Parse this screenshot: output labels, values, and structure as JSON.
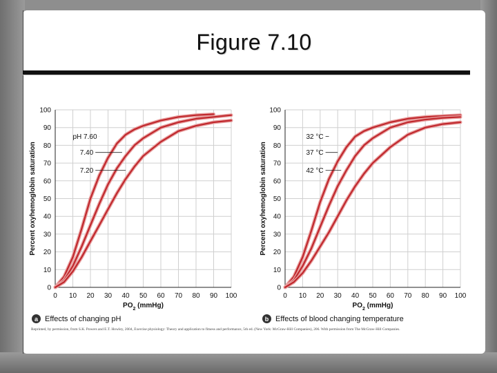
{
  "slide": {
    "title": "Figure 7.10",
    "credit": "Reprinted, by permission, from S.K. Powers and E.T. Howley, 2004, Exercise physiology: Theory and application to fitness and performance, 5th ed. (New York: McGraw-Hill Companies), 206. With permission from The McGraw-Hill Companies."
  },
  "colors": {
    "curve": "#c0282d",
    "curve_glow": "#e8a0a0",
    "grid": "#cfcfcf"
  },
  "chart_data": [
    {
      "type": "line",
      "panel_letter": "a",
      "caption": "Effects of changing pH",
      "xlabel": "PO",
      "xlabel_sub": "2",
      "xlabel_unit": " (mmHg)",
      "ylabel": "Percent oxyhemoglobin saturation",
      "xlim": [
        0,
        100
      ],
      "ylim": [
        0,
        100
      ],
      "xticks": [
        0,
        10,
        20,
        30,
        40,
        50,
        60,
        70,
        80,
        90,
        100
      ],
      "yticks": [
        0,
        10,
        20,
        30,
        40,
        50,
        60,
        70,
        80,
        90,
        100
      ],
      "grid": true,
      "series_labels": [
        {
          "text": "pH 7.60",
          "at": [
            10,
            85
          ],
          "to": [
            25,
            85
          ]
        },
        {
          "text": "7.40",
          "at": [
            14,
            76
          ],
          "to": [
            38,
            76
          ]
        },
        {
          "text": "7.20",
          "at": [
            14,
            66
          ],
          "to": [
            40,
            66
          ]
        }
      ],
      "series": [
        {
          "x": [
            0,
            5,
            10,
            15,
            20,
            25,
            30,
            35,
            40,
            45,
            50,
            60,
            70,
            80,
            90
          ],
          "y": [
            0,
            6,
            17,
            33,
            50,
            63,
            73,
            81,
            86,
            89,
            91,
            94,
            96,
            97,
            97.5
          ]
        },
        {
          "x": [
            0,
            5,
            10,
            15,
            20,
            25,
            30,
            35,
            40,
            45,
            50,
            60,
            70,
            80,
            90,
            100
          ],
          "y": [
            0,
            4,
            12,
            23,
            35,
            47,
            58,
            67,
            74,
            80,
            84,
            90,
            93,
            95,
            96,
            97
          ]
        },
        {
          "x": [
            0,
            5,
            10,
            15,
            20,
            25,
            30,
            35,
            40,
            45,
            50,
            60,
            70,
            80,
            90,
            100
          ],
          "y": [
            0,
            3,
            9,
            17,
            26,
            35,
            44,
            53,
            61,
            68,
            74,
            82,
            88,
            91,
            93,
            94
          ]
        }
      ]
    },
    {
      "type": "line",
      "panel_letter": "b",
      "caption": "Effects of blood changing temperature",
      "xlabel": "PO",
      "xlabel_sub": "2",
      "xlabel_unit": " (mmHg)",
      "ylabel": "Percent oxyhemoglobin saturation",
      "xlim": [
        0,
        100
      ],
      "ylim": [
        0,
        100
      ],
      "xticks": [
        0,
        10,
        20,
        30,
        40,
        50,
        60,
        70,
        80,
        90,
        100
      ],
      "yticks": [
        0,
        10,
        20,
        30,
        40,
        50,
        60,
        70,
        80,
        90,
        100
      ],
      "grid": true,
      "series_labels": [
        {
          "text": "32 °C",
          "at": [
            12,
            85
          ],
          "to": [
            25,
            85
          ]
        },
        {
          "text": "37 °C",
          "at": [
            12,
            76
          ],
          "to": [
            30,
            76
          ]
        },
        {
          "text": "42 °C",
          "at": [
            12,
            66
          ],
          "to": [
            32,
            66
          ]
        }
      ],
      "series": [
        {
          "x": [
            0,
            5,
            10,
            15,
            20,
            25,
            30,
            35,
            40,
            45,
            50,
            60,
            70,
            80,
            90,
            100
          ],
          "y": [
            0,
            6,
            17,
            32,
            48,
            61,
            71,
            79,
            85,
            88,
            90,
            93,
            95,
            96,
            96.5,
            97
          ]
        },
        {
          "x": [
            0,
            5,
            10,
            15,
            20,
            25,
            30,
            35,
            40,
            45,
            50,
            60,
            70,
            80,
            90,
            100
          ],
          "y": [
            0,
            4,
            12,
            22,
            34,
            46,
            57,
            66,
            74,
            80,
            84,
            90,
            93,
            94.5,
            95.5,
            96
          ]
        },
        {
          "x": [
            0,
            5,
            10,
            15,
            20,
            25,
            30,
            35,
            40,
            45,
            50,
            60,
            70,
            80,
            90,
            100
          ],
          "y": [
            0,
            3,
            8,
            15,
            23,
            31,
            40,
            49,
            57,
            64,
            70,
            79,
            86,
            90,
            92,
            93
          ]
        }
      ]
    }
  ]
}
